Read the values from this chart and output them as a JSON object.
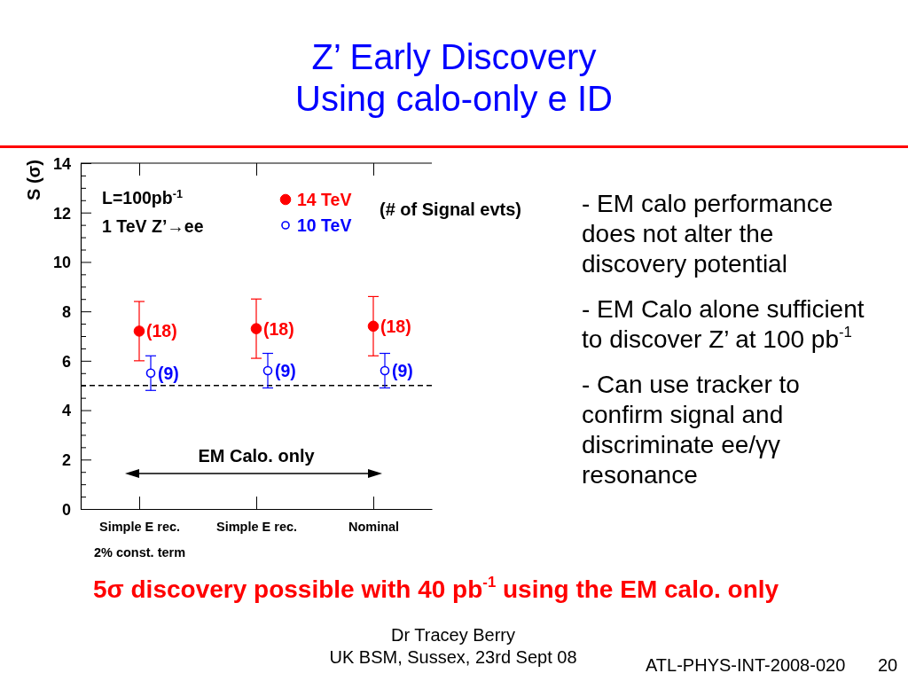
{
  "chart_data": {
    "type": "scatter",
    "title": "Z’ Early Discovery",
    "subtitle": "Using calo-only e ID",
    "ylabel": "S (σ)",
    "categories": [
      "Simple E rec.\n2% const. term",
      "Simple E rec.",
      "Nominal"
    ],
    "series": [
      {
        "name": "14 TeV",
        "color": "#ff0000",
        "values": [
          7.2,
          7.3,
          7.4
        ],
        "errors": [
          [
            6.0,
            8.4
          ],
          [
            6.1,
            8.5
          ],
          [
            6.2,
            8.6
          ]
        ]
      },
      {
        "name": "10 TeV",
        "color": "#0000ff",
        "values": [
          5.5,
          5.6,
          5.6
        ],
        "errors": [
          [
            4.8,
            6.2
          ],
          [
            4.9,
            6.3
          ],
          [
            4.9,
            6.3
          ]
        ]
      }
    ],
    "ylim": [
      0,
      14
    ],
    "yticks": [
      0,
      {
        "value": 0.5,
        "label": null
      },
      {
        "value": 1,
        "label": null
      },
      {
        "value": 1.5,
        "label": null
      },
      2,
      {
        "value": 2.5,
        "label": null
      },
      {
        "value": 3,
        "label": null
      },
      {
        "value": 3.5,
        "label": null
      },
      4,
      {
        "value": 4.5,
        "label": null
      },
      {
        "value": 5,
        "label": null
      },
      {
        "value": 5.5,
        "label": null
      },
      6,
      {
        "value": 6.5,
        "label": null
      },
      {
        "value": 7,
        "label": null
      },
      {
        "value": 7.5,
        "label": null
      },
      8,
      {
        "value": 8.5,
        "label": null
      },
      {
        "value": 9,
        "label": null
      },
      {
        "value": 9.5,
        "label": null
      },
      10,
      {
        "value": 10.5,
        "label": null
      },
      {
        "value": 11,
        "label": null
      },
      {
        "value": 11.5,
        "label": null
      },
      12,
      {
        "value": 12.5,
        "label": null
      },
      {
        "value": 13,
        "label": null
      },
      {
        "value": 13.5,
        "label": null
      },
      14
    ],
    "ref_lines": [
      {
        "axis": "y",
        "value": 5,
        "color": "#000000",
        "line_style": "dashed"
      }
    ],
    "legend": "top",
    "marker": "circle",
    "annotations": [
      "L=100pb$^{-1}$",
      "1 TeV Z’→ee",
      "(# of Signal evts)",
      "EM Calo. only",
      "- EM calo performance does not alter the discovery potential",
      "- EM Calo alone sufficient to discover Z’ at 100 pb$^{-1}$",
      "- Can use tracker to confirm signal and discriminate ee/γγ resonance",
      "5σ discovery possible with 40 pb$^{-1}$ using the EM calo. only",
      "Dr Tracey Berry",
      "UK BSM, Sussex, 23rd Sept 08",
      "ATL-PHYS-INT-2008-020",
      "20",
      {
        "text": "(18)",
        "x": "Simple E rec.\n2% const. term",
        "y": 7.2
      },
      {
        "text": "(18)",
        "x": "Simple E rec.",
        "y": 7.3
      },
      {
        "text": "(18)",
        "x": "Nominal",
        "y": 7.4
      },
      "(9)",
      "(9)",
      "(9)"
    ]
  }
}
